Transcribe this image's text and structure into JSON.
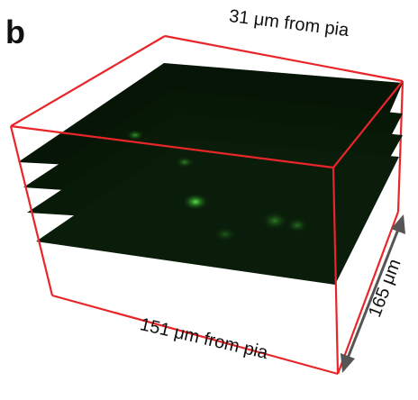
{
  "panel_label": "b",
  "labels": {
    "top": "31 μm from pia",
    "bottom": "151 μm from pia",
    "depth": "165 μm"
  }
}
